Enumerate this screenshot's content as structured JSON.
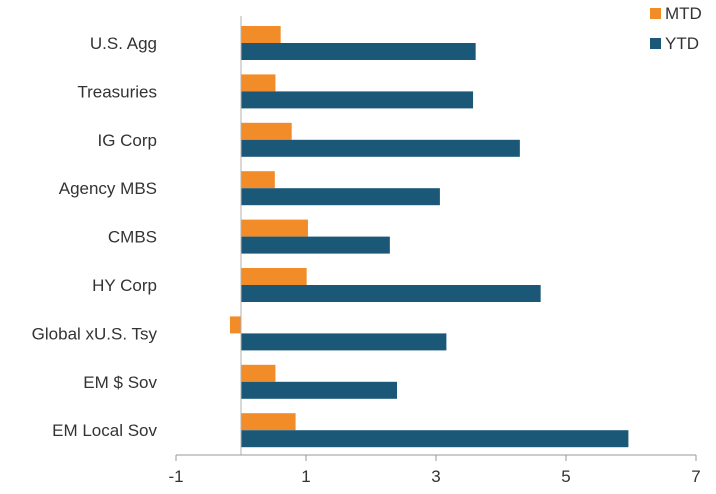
{
  "chart_data": {
    "type": "bar",
    "orientation": "horizontal",
    "title": "",
    "xlabel": "",
    "ylabel": "",
    "categories": [
      "U.S. Agg",
      "Treasuries",
      "IG Corp",
      "Agency MBS",
      "CMBS",
      "HY Corp",
      "Global xU.S. Tsy",
      "EM $ Sov",
      "EM Local Sov"
    ],
    "series": [
      {
        "name": "MTD",
        "color": "#f28c28",
        "values": [
          0.61,
          0.53,
          0.78,
          0.52,
          1.03,
          1.01,
          -0.17,
          0.53,
          0.84
        ]
      },
      {
        "name": "YTD",
        "color": "#1b5878",
        "values": [
          3.61,
          3.57,
          4.29,
          3.06,
          2.29,
          4.61,
          3.16,
          2.4,
          5.96
        ]
      }
    ],
    "xlim": [
      -1,
      7
    ],
    "xticks": [
      "-1",
      "1",
      "3",
      "5",
      "7"
    ],
    "grid": false,
    "legend": "top-right"
  }
}
